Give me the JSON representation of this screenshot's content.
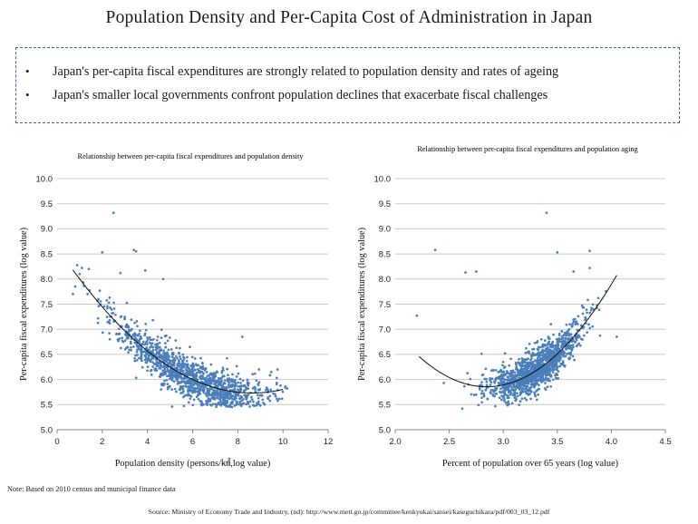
{
  "title": "Population Density and Per-Capita Cost of Administration in Japan",
  "bullets": [
    "Japan's per-capita fiscal expenditures are strongly related to population density and rates of ageing",
    "Japan's smaller local governments confront population declines that exacerbate fiscal challenges"
  ],
  "bullet_symbol": "•",
  "colors": {
    "points": "#4a7ebb",
    "curve": "#111111",
    "grid": "#c8c8c8",
    "box_border": "#41668f"
  },
  "chart_data": [
    {
      "type": "scatter",
      "title": "Relationship between per-capita fiscal expenditures and population density",
      "xlabel": "Population density (persons/㎢,log value)",
      "ylabel": "Per-capita fiscal expenditures (log value)",
      "xlim": [
        0,
        12
      ],
      "ylim": [
        5.0,
        10.0
      ],
      "xticks": [
        "0",
        "2",
        "4",
        "6",
        "8",
        "10",
        "12"
      ],
      "yticks": [
        "5.0",
        "5.5",
        "6.0",
        "6.5",
        "7.0",
        "7.5",
        "8.0",
        "8.5",
        "9.0",
        "9.5",
        "10.0"
      ],
      "grid": true,
      "trend": {
        "form": "quadratic",
        "points": [
          [
            0.7,
            8.08
          ],
          [
            2,
            7.6
          ],
          [
            3,
            7.0
          ],
          [
            4,
            6.55
          ],
          [
            5,
            6.2
          ],
          [
            6,
            5.95
          ],
          [
            7,
            5.82
          ],
          [
            8,
            5.77
          ],
          [
            9,
            5.76
          ],
          [
            10,
            5.8
          ]
        ]
      },
      "outliers": [
        [
          2.5,
          9.32
        ],
        [
          2.0,
          8.53
        ],
        [
          3.4,
          8.58
        ],
        [
          3.5,
          8.55
        ],
        [
          3.9,
          8.17
        ],
        [
          2.8,
          8.12
        ],
        [
          1.1,
          8.22
        ],
        [
          1.4,
          8.2
        ],
        [
          4.7,
          8.0
        ],
        [
          8.2,
          6.85
        ],
        [
          0.8,
          7.85
        ],
        [
          0.7,
          7.7
        ]
      ],
      "cloud": {
        "n": 1300,
        "x_range": [
          0.7,
          10.2
        ],
        "center_x": 6.0,
        "spread_x": 1.8,
        "residual_sd": 0.2
      }
    },
    {
      "type": "scatter",
      "title": "Relationship between per-capita fiscal expenditures and population aging",
      "xlabel": "Percent of population over 65 years (log value)",
      "ylabel": "Per-capita fiscal expenditures (log value)",
      "xlim": [
        2.0,
        4.5
      ],
      "ylim": [
        5.0,
        10.0
      ],
      "xticks": [
        "2.0",
        "2.5",
        "3.0",
        "3.5",
        "4.0",
        "4.5"
      ],
      "yticks": [
        "5.0",
        "5.5",
        "6.0",
        "6.5",
        "7.0",
        "7.5",
        "8.0",
        "8.5",
        "9.0",
        "9.5",
        "10.0"
      ],
      "grid": true,
      "trend": {
        "form": "quadratic",
        "points": [
          [
            2.22,
            6.45
          ],
          [
            2.5,
            6.05
          ],
          [
            2.8,
            5.87
          ],
          [
            3.0,
            5.88
          ],
          [
            3.2,
            6.05
          ],
          [
            3.5,
            6.5
          ],
          [
            3.8,
            7.25
          ],
          [
            4.05,
            8.08
          ]
        ]
      },
      "outliers": [
        [
          2.37,
          8.58
        ],
        [
          2.2,
          7.27
        ],
        [
          3.4,
          9.32
        ],
        [
          2.65,
          8.13
        ],
        [
          2.75,
          8.15
        ],
        [
          3.5,
          8.53
        ],
        [
          3.8,
          8.56
        ],
        [
          3.65,
          8.15
        ],
        [
          3.8,
          8.22
        ],
        [
          4.05,
          6.85
        ],
        [
          2.45,
          5.93
        ],
        [
          2.62,
          5.42
        ]
      ],
      "cloud": {
        "n": 1300,
        "x_range": [
          2.45,
          4.05
        ],
        "center_x": 3.3,
        "spread_x": 0.22,
        "residual_sd": 0.2
      }
    }
  ],
  "note": "Note: Based on 2010 census and municipal finance data",
  "source": "Source: Ministry of Economy Trade and Industry, (nd): http://www.meti.go.jp/committee/kenkyukai/sansei/kaseguchikara/pdf/003_03_12.pdf"
}
